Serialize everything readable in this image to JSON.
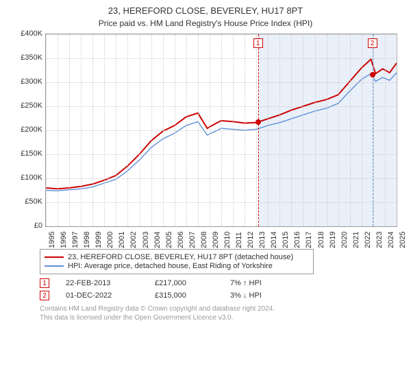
{
  "title": "23, HEREFORD CLOSE, BEVERLEY, HU17 8PT",
  "subtitle": "Price paid vs. HM Land Registry's House Price Index (HPI)",
  "chart": {
    "type": "line",
    "ylim": [
      0,
      400000
    ],
    "ytick_step": 50000,
    "ylabels": [
      "£0",
      "£50K",
      "£100K",
      "£150K",
      "£200K",
      "£250K",
      "£300K",
      "£350K",
      "£400K"
    ],
    "xlim": [
      1995,
      2025
    ],
    "xticks": [
      1995,
      1996,
      1997,
      1998,
      1999,
      2000,
      2001,
      2002,
      2003,
      2004,
      2005,
      2006,
      2007,
      2008,
      2009,
      2010,
      2011,
      2012,
      2013,
      2014,
      2015,
      2016,
      2017,
      2018,
      2019,
      2020,
      2021,
      2022,
      2023,
      2024,
      2025
    ],
    "background_color": "#ffffff",
    "grid_color": "#cccccc",
    "shade_color": "#eaf0f9",
    "shade_from_year": 2013.15,
    "series": [
      {
        "name": "red",
        "label": "23, HEREFORD CLOSE, BEVERLEY, HU17 8PT (detached house)",
        "color": "#cc0000",
        "width": 2,
        "data": [
          [
            1995,
            80000
          ],
          [
            1996,
            78000
          ],
          [
            1997,
            80000
          ],
          [
            1998,
            83000
          ],
          [
            1999,
            88000
          ],
          [
            2000,
            96000
          ],
          [
            2001,
            106000
          ],
          [
            2002,
            126000
          ],
          [
            2003,
            150000
          ],
          [
            2004,
            178000
          ],
          [
            2005,
            198000
          ],
          [
            2006,
            210000
          ],
          [
            2007,
            228000
          ],
          [
            2008,
            236000
          ],
          [
            2008.8,
            204000
          ],
          [
            2009.5,
            214000
          ],
          [
            2010,
            220000
          ],
          [
            2011,
            218000
          ],
          [
            2012,
            215000
          ],
          [
            2013,
            216000
          ],
          [
            2014,
            224000
          ],
          [
            2015,
            232000
          ],
          [
            2016,
            242000
          ],
          [
            2017,
            250000
          ],
          [
            2018,
            258000
          ],
          [
            2019,
            264000
          ],
          [
            2020,
            274000
          ],
          [
            2021,
            302000
          ],
          [
            2022,
            330000
          ],
          [
            2022.8,
            348000
          ],
          [
            2023.2,
            318000
          ],
          [
            2023.8,
            328000
          ],
          [
            2024.4,
            320000
          ],
          [
            2025,
            340000
          ]
        ]
      },
      {
        "name": "blue",
        "label": "HPI: Average price, detached house, East Riding of Yorkshire",
        "color": "#5b8fd6",
        "width": 1.4,
        "data": [
          [
            1995,
            75000
          ],
          [
            1996,
            74000
          ],
          [
            1997,
            76000
          ],
          [
            1998,
            78000
          ],
          [
            1999,
            82000
          ],
          [
            2000,
            90000
          ],
          [
            2001,
            98000
          ],
          [
            2002,
            116000
          ],
          [
            2003,
            138000
          ],
          [
            2004,
            164000
          ],
          [
            2005,
            182000
          ],
          [
            2006,
            194000
          ],
          [
            2007,
            210000
          ],
          [
            2008,
            218000
          ],
          [
            2008.8,
            190000
          ],
          [
            2009.5,
            198000
          ],
          [
            2010,
            204000
          ],
          [
            2011,
            202000
          ],
          [
            2012,
            200000
          ],
          [
            2013,
            202000
          ],
          [
            2014,
            210000
          ],
          [
            2015,
            216000
          ],
          [
            2016,
            224000
          ],
          [
            2017,
            232000
          ],
          [
            2018,
            240000
          ],
          [
            2019,
            246000
          ],
          [
            2020,
            256000
          ],
          [
            2021,
            282000
          ],
          [
            2022,
            306000
          ],
          [
            2022.8,
            318000
          ],
          [
            2023.2,
            302000
          ],
          [
            2023.8,
            310000
          ],
          [
            2024.4,
            304000
          ],
          [
            2025,
            320000
          ]
        ]
      }
    ],
    "events": [
      {
        "n": "1",
        "year": 2013.15,
        "price": 217000,
        "date": "22-FEB-2013",
        "price_label": "£217,000",
        "hpi": "7% ↑ HPI",
        "dash_color": "#cc0000"
      },
      {
        "n": "2",
        "year": 2022.92,
        "price": 315000,
        "date": "01-DEC-2022",
        "price_label": "£315,000",
        "hpi": "3% ↓ HPI",
        "dash_color": "#5b8fd6"
      }
    ]
  },
  "legend": {
    "item1": "23, HEREFORD CLOSE, BEVERLEY, HU17 8PT (detached house)",
    "item2": "HPI: Average price, detached house, East Riding of Yorkshire"
  },
  "footer": {
    "line1": "Contains HM Land Registry data © Crown copyright and database right 2024.",
    "line2": "This data is licensed under the Open Government Licence v3.0."
  }
}
